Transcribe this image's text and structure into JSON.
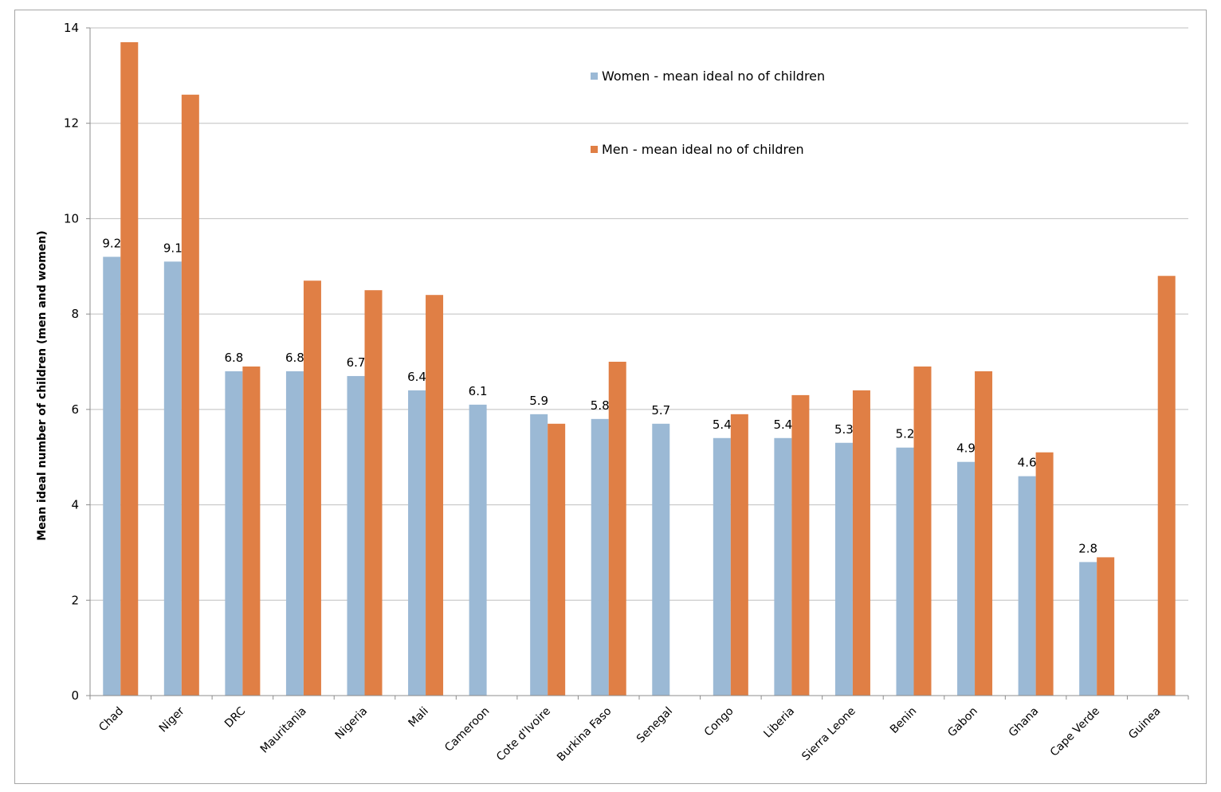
{
  "chart_data": {
    "type": "bar",
    "title": "",
    "xlabel": "",
    "ylabel": "Mean ideal number of children (men and women)",
    "ylim": [
      0,
      14
    ],
    "yticks": [
      0,
      2,
      4,
      6,
      8,
      10,
      12,
      14
    ],
    "grid": true,
    "legend_position": "top-center",
    "categories": [
      "Chad",
      "Niger",
      "DRC",
      "Mauritania",
      "Nigeria",
      "Mali",
      "Cameroon",
      "Cote d'Ivoire",
      "Burkina Faso",
      "Senegal",
      "Congo",
      "Liberia",
      "Sierra Leone",
      "Benin",
      "Gabon",
      "Ghana",
      "Cape Verde",
      "Guinea"
    ],
    "series": [
      {
        "name": "Women - mean ideal no of children",
        "color": "#9bb9d5",
        "values": [
          9.2,
          9.1,
          6.8,
          6.8,
          6.7,
          6.4,
          6.1,
          5.9,
          5.8,
          5.7,
          5.4,
          5.4,
          5.3,
          5.2,
          4.9,
          4.6,
          2.8,
          null
        ],
        "data_labels": [
          "9.2",
          "9.1",
          "6.8",
          "6.8",
          "6.7",
          "6.4",
          "6.1",
          "5.9",
          "5.8",
          "5.7",
          "5.4",
          "5.4",
          "5.3",
          "5.2",
          "4.9",
          "4.6",
          "2.8",
          ""
        ]
      },
      {
        "name": "Men - mean ideal no of children",
        "color": "#e07f45",
        "values": [
          13.7,
          12.6,
          6.9,
          8.7,
          8.5,
          8.4,
          null,
          5.7,
          7.0,
          null,
          5.9,
          6.3,
          6.4,
          6.9,
          6.8,
          5.1,
          2.9,
          8.8
        ]
      }
    ],
    "gridline_color": "#bfbfbf",
    "axis_color": "#8c8c8c"
  }
}
